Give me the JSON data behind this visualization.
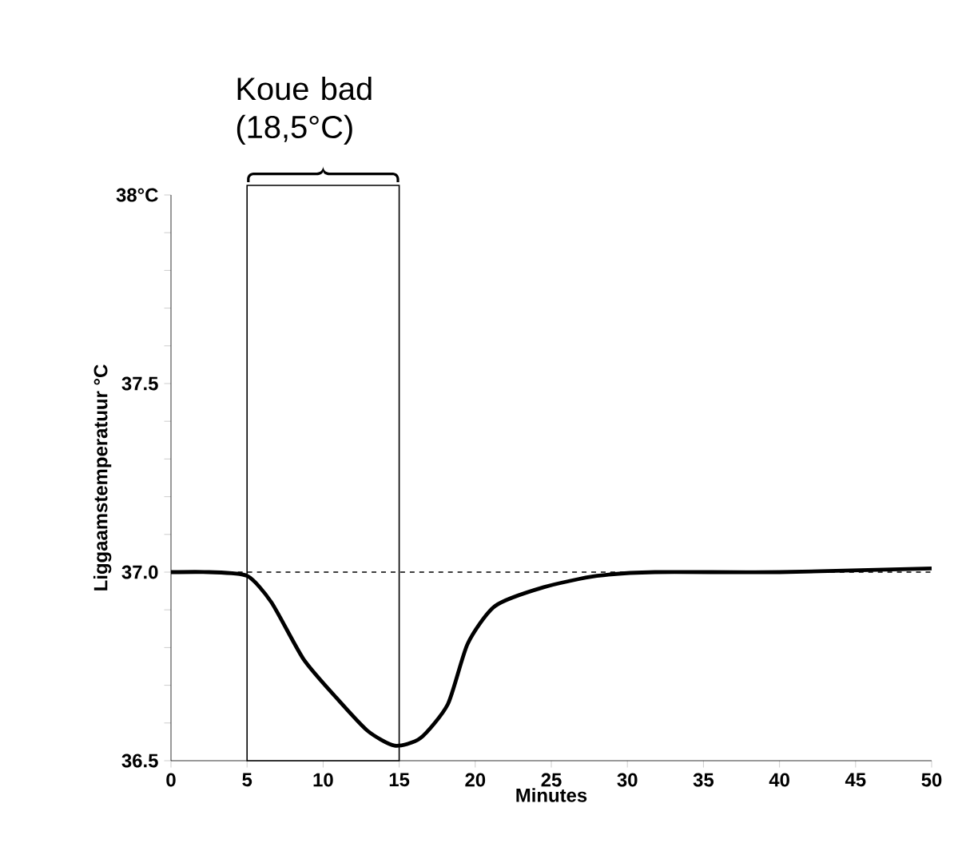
{
  "chart_data": {
    "type": "line",
    "xlabel": "Minutes",
    "ylabel": "Liggaamstemperatuur °C",
    "x": [
      0,
      2.5,
      5,
      6.6,
      8.7,
      10.8,
      12.9,
      14.7,
      16.4,
      18.2,
      19.5,
      21.3,
      24.5,
      28,
      31.8,
      40,
      50
    ],
    "series": [
      {
        "color": "#000000",
        "values": [
          37.0,
          37.0,
          36.99,
          36.92,
          36.77,
          36.67,
          36.58,
          36.54,
          36.56,
          36.65,
          36.81,
          36.91,
          36.96,
          36.99,
          37.0,
          37.0,
          37.01
        ]
      }
    ],
    "xlim": [
      0,
      50
    ],
    "xticks": [
      0,
      5,
      10,
      15,
      20,
      25,
      30,
      35,
      40,
      45,
      50
    ],
    "ylim": [
      36.5,
      38
    ],
    "yticks": [
      {
        "value": 36.5,
        "label": "36.5"
      },
      {
        "value": 36.6,
        "label": null
      },
      {
        "value": 36.7,
        "label": null
      },
      {
        "value": 36.8,
        "label": null
      },
      {
        "value": 36.9,
        "label": null
      },
      {
        "value": 37.0,
        "label": "37.0"
      },
      {
        "value": 37.1,
        "label": null
      },
      {
        "value": 37.2,
        "label": null
      },
      {
        "value": 37.3,
        "label": null
      },
      {
        "value": 37.4,
        "label": null
      },
      {
        "value": 37.5,
        "label": "37.5"
      },
      {
        "value": 37.6,
        "label": null
      },
      {
        "value": 37.7,
        "label": null
      },
      {
        "value": 37.8,
        "label": null
      },
      {
        "value": 37.9,
        "label": null
      },
      {
        "value": 38,
        "label": "38°C"
      }
    ],
    "ref_lines": [
      {
        "axis": "y",
        "value": 37.0,
        "line_style": "dashed"
      }
    ],
    "bands": [
      {
        "axis": "x",
        "from": 5,
        "to": 15,
        "label": "Koue bad (18,5°C)"
      }
    ],
    "grid": false,
    "marker": "none",
    "line_style": "solid"
  }
}
